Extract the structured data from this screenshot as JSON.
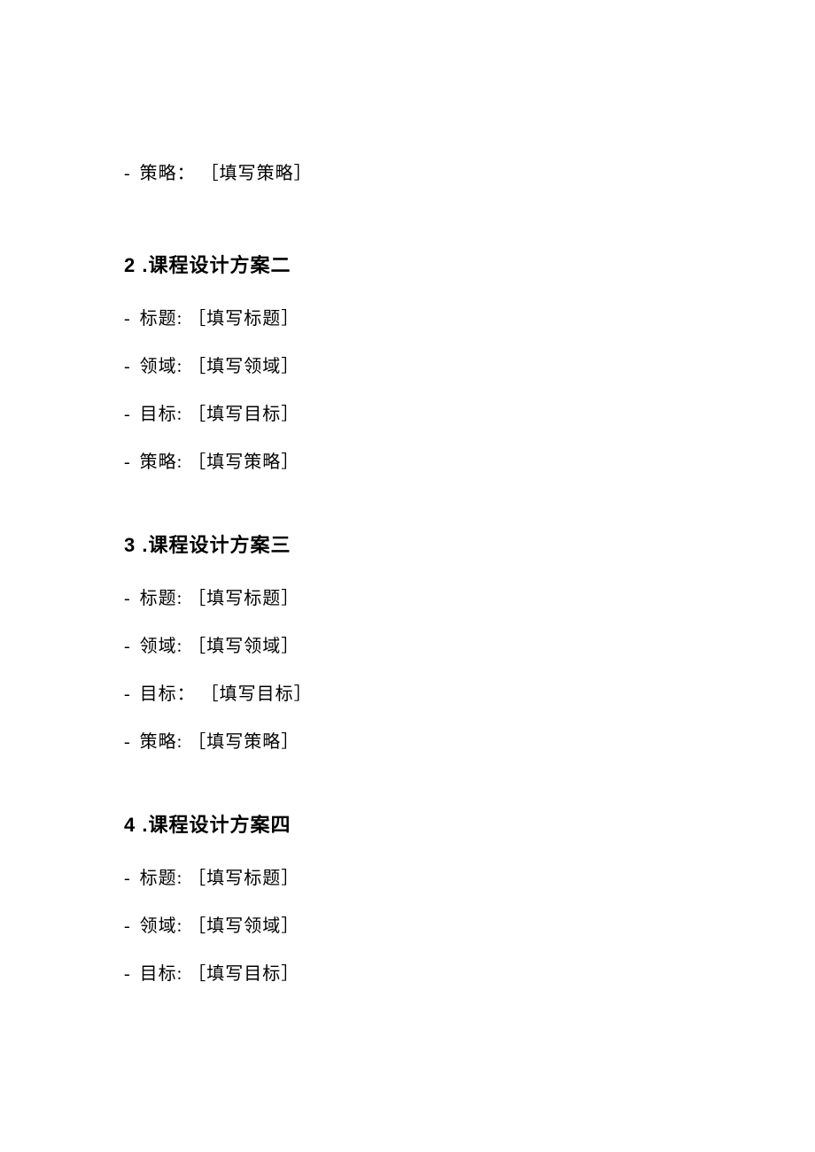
{
  "doc": {
    "text_color": "#000000",
    "background_color": "#ffffff",
    "heading_font": "Microsoft YaHei, SimHei, sans-serif",
    "body_font": "SimSun, serif",
    "heading_fontsize": 22,
    "body_fontsize": 20,
    "bullet_char": "-"
  },
  "orphan_item": {
    "label": "策略：",
    "value": "［填写策略］"
  },
  "sections": [
    {
      "number": "2",
      "title": ".课程设计方案二",
      "items": [
        {
          "label": "标题:",
          "value": "［填写标题］"
        },
        {
          "label": "领域:",
          "value": "［填写领域］"
        },
        {
          "label": "目标:",
          "value": "［填写目标］"
        },
        {
          "label": "策略:",
          "value": "［填写策略］"
        }
      ]
    },
    {
      "number": "3",
      "title": ".课程设计方案三",
      "items": [
        {
          "label": "标题:",
          "value": "［填写标题］"
        },
        {
          "label": "领域:",
          "value": "［填写领域］"
        },
        {
          "label": "目标：",
          "value": "［填写目标］"
        },
        {
          "label": "策略:",
          "value": "［填写策略］"
        }
      ]
    },
    {
      "number": "4",
      "title": ".课程设计方案四",
      "items": [
        {
          "label": "标题:",
          "value": "［填写标题］"
        },
        {
          "label": "领域:",
          "value": "［填写领域］"
        },
        {
          "label": "目标:",
          "value": "［填写目标］"
        }
      ]
    }
  ]
}
